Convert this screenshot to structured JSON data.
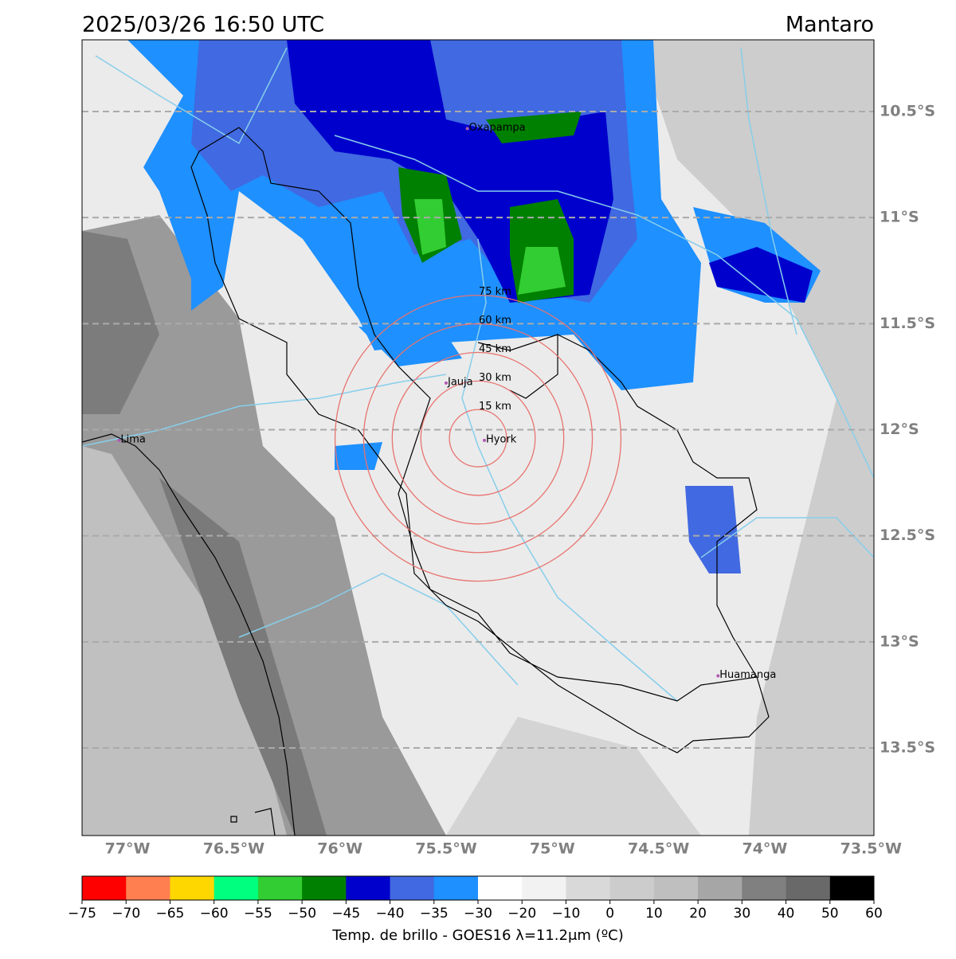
{
  "map": {
    "title": "2025/03/26 16:50 UTC",
    "region": "Mantaro",
    "lonlim": [
      -77.214,
      -73.486
    ],
    "latlim": [
      -10.162,
      -13.913
    ],
    "lonticks": [
      {
        "value": -77,
        "label": "77°W"
      },
      {
        "value": -76.5,
        "label": "76.5°W"
      },
      {
        "value": -76,
        "label": "76°W"
      },
      {
        "value": -75.5,
        "label": "75.5°W"
      },
      {
        "value": -75,
        "label": "75°W"
      },
      {
        "value": -74.5,
        "label": "74.5°W"
      },
      {
        "value": -74,
        "label": "74°W"
      },
      {
        "value": -73.5,
        "label": "73.5°W"
      }
    ],
    "latticks": [
      {
        "value": -10.5,
        "label": "10.5°S"
      },
      {
        "value": -11,
        "label": "11°S"
      },
      {
        "value": -11.5,
        "label": "11.5°S"
      },
      {
        "value": -12,
        "label": "12°S"
      },
      {
        "value": -12.5,
        "label": "12.5°S"
      },
      {
        "value": -13,
        "label": "13°S"
      },
      {
        "value": -13.5,
        "label": "13.5°S"
      }
    ],
    "grid": true,
    "rings": {
      "center": [
        -75.35,
        -12.04
      ],
      "radii": [
        {
          "value": 15,
          "label": "15 km"
        },
        {
          "value": 30,
          "label": "30 km"
        },
        {
          "value": 45,
          "label": "45 km"
        },
        {
          "value": 60,
          "label": "60 km"
        },
        {
          "value": 75,
          "label": "75 km"
        }
      ],
      "color": "#e8736f"
    },
    "cities": [
      {
        "name": "Oxapampa",
        "lon": -75.4,
        "lat": -10.58
      },
      {
        "name": "Jauja",
        "lon": -75.5,
        "lat": -11.78
      },
      {
        "name": "Hyork",
        "lon": -75.32,
        "lat": -12.05
      },
      {
        "name": "Lima",
        "lon": -77.04,
        "lat": -12.05
      },
      {
        "name": "Huamanga",
        "lon": -74.22,
        "lat": -13.16
      }
    ],
    "colorbar": {
      "ticks": [
        {
          "value": -75,
          "label": "−75"
        },
        {
          "value": -70,
          "label": "−70"
        },
        {
          "value": -65,
          "label": "−65"
        },
        {
          "value": -60,
          "label": "−60"
        },
        {
          "value": -55,
          "label": "−55"
        },
        {
          "value": -50,
          "label": "−50"
        },
        {
          "value": -45,
          "label": "−45"
        },
        {
          "value": -40,
          "label": "−40"
        },
        {
          "value": -35,
          "label": "−35"
        },
        {
          "value": -30,
          "label": "−30"
        },
        {
          "value": -20,
          "label": "−20"
        },
        {
          "value": -10,
          "label": "−10"
        },
        0,
        10,
        20,
        30,
        40,
        50,
        60
      ],
      "colors": [
        "#ff0000",
        "#ff7f50",
        "#ffd700",
        "#00ff7f",
        "#32cd32",
        "#008000",
        "#0000cd",
        "#4169e1",
        "#1e90ff",
        "#ffffff",
        "#f2f2f2",
        "#d9d9d9",
        "#cccccc",
        "#bfbfbf",
        "#a6a6a6",
        "#808080",
        "#696969",
        "#000000"
      ],
      "label": "Temp. de brillo - GOES16 λ=11.2μm (ºC)"
    }
  }
}
